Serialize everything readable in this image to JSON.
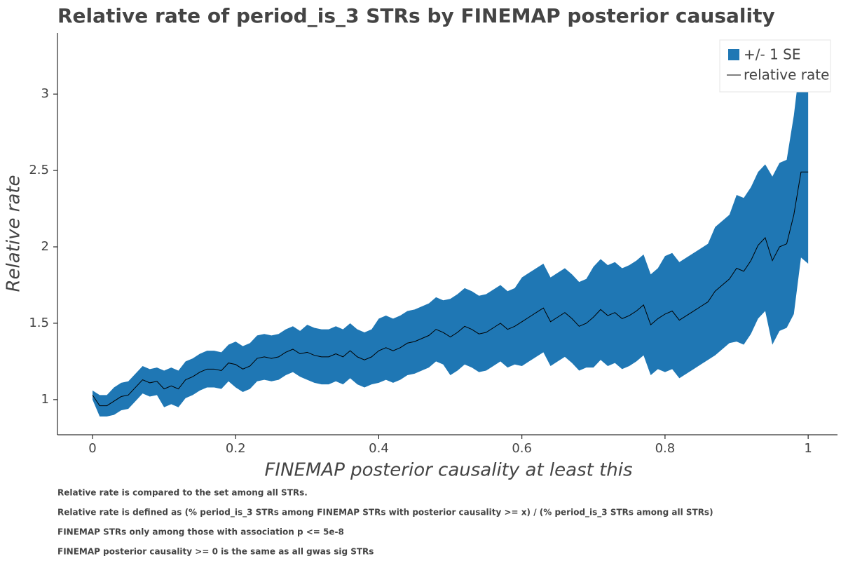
{
  "chart_data": {
    "type": "band-line",
    "title": "Relative rate of period_is_3 STRs by FINEMAP posterior causality",
    "x_label": "FINEMAP posterior causality at least this",
    "y_label": "Relative rate",
    "notes": [
      "Relative rate is compared to the set among all STRs.",
      "Relative rate is defined as (% period_is_3 STRs among FINEMAP STRs with posterior causality >= x) / (% period_is_3 STRs among all STRs)",
      "FINEMAP STRs only among those with association p <= 5e-8",
      "FINEMAP posterior causality >= 0 is the same as all gwas sig STRs"
    ],
    "x": [
      0,
      0.01,
      0.02,
      0.03,
      0.04,
      0.05,
      0.06,
      0.07,
      0.08,
      0.09,
      0.1,
      0.11,
      0.12,
      0.13,
      0.14,
      0.15,
      0.16,
      0.17,
      0.18,
      0.19,
      0.2,
      0.21,
      0.22,
      0.23,
      0.24,
      0.25,
      0.26,
      0.27,
      0.28,
      0.29,
      0.3,
      0.31,
      0.32,
      0.33,
      0.34,
      0.35,
      0.36,
      0.37,
      0.38,
      0.39,
      0.4,
      0.41,
      0.42,
      0.43,
      0.44,
      0.45,
      0.46,
      0.47,
      0.48,
      0.49,
      0.5,
      0.51,
      0.52,
      0.53,
      0.54,
      0.55,
      0.56,
      0.57,
      0.58,
      0.59,
      0.6,
      0.61,
      0.62,
      0.63,
      0.64,
      0.65,
      0.66,
      0.67,
      0.68,
      0.69,
      0.7,
      0.71,
      0.72,
      0.73,
      0.74,
      0.75,
      0.76,
      0.77,
      0.78,
      0.79,
      0.8,
      0.81,
      0.82,
      0.83,
      0.84,
      0.85,
      0.86,
      0.87,
      0.88,
      0.89,
      0.9,
      0.91,
      0.92,
      0.93,
      0.94,
      0.95,
      0.96,
      0.97,
      0.98,
      0.99,
      1
    ],
    "series": [
      {
        "name": "+/- 1 SE",
        "color": "#1f77b4",
        "lower": [
          1.0,
          0.89,
          0.89,
          0.9,
          0.93,
          0.94,
          0.99,
          1.04,
          1.02,
          1.03,
          0.95,
          0.97,
          0.95,
          1.01,
          1.03,
          1.06,
          1.08,
          1.08,
          1.07,
          1.12,
          1.08,
          1.05,
          1.07,
          1.12,
          1.13,
          1.12,
          1.13,
          1.16,
          1.18,
          1.15,
          1.13,
          1.11,
          1.1,
          1.1,
          1.12,
          1.1,
          1.14,
          1.1,
          1.08,
          1.1,
          1.11,
          1.13,
          1.11,
          1.13,
          1.16,
          1.17,
          1.19,
          1.21,
          1.25,
          1.23,
          1.16,
          1.19,
          1.23,
          1.21,
          1.18,
          1.19,
          1.22,
          1.25,
          1.21,
          1.23,
          1.22,
          1.25,
          1.28,
          1.31,
          1.22,
          1.25,
          1.28,
          1.24,
          1.19,
          1.21,
          1.21,
          1.26,
          1.22,
          1.24,
          1.2,
          1.22,
          1.25,
          1.29,
          1.16,
          1.2,
          1.18,
          1.2,
          1.14,
          1.17,
          1.2,
          1.23,
          1.26,
          1.29,
          1.33,
          1.37,
          1.38,
          1.36,
          1.43,
          1.53,
          1.58,
          1.36,
          1.45,
          1.47,
          1.56,
          1.93,
          1.89
        ],
        "upper": [
          1.06,
          1.03,
          1.03,
          1.08,
          1.11,
          1.12,
          1.17,
          1.22,
          1.2,
          1.21,
          1.19,
          1.21,
          1.19,
          1.25,
          1.27,
          1.3,
          1.32,
          1.32,
          1.31,
          1.36,
          1.38,
          1.35,
          1.37,
          1.42,
          1.43,
          1.42,
          1.43,
          1.46,
          1.48,
          1.45,
          1.49,
          1.47,
          1.46,
          1.46,
          1.48,
          1.46,
          1.5,
          1.46,
          1.44,
          1.46,
          1.53,
          1.55,
          1.53,
          1.55,
          1.58,
          1.59,
          1.61,
          1.63,
          1.67,
          1.65,
          1.66,
          1.69,
          1.73,
          1.71,
          1.68,
          1.69,
          1.72,
          1.75,
          1.71,
          1.73,
          1.8,
          1.83,
          1.86,
          1.89,
          1.8,
          1.83,
          1.86,
          1.82,
          1.77,
          1.79,
          1.87,
          1.92,
          1.88,
          1.9,
          1.86,
          1.88,
          1.91,
          1.95,
          1.82,
          1.86,
          1.94,
          1.96,
          1.9,
          1.93,
          1.96,
          1.99,
          2.02,
          2.13,
          2.17,
          2.21,
          2.34,
          2.32,
          2.39,
          2.49,
          2.54,
          2.46,
          2.55,
          2.57,
          2.86,
          3.25,
          3.25
        ]
      },
      {
        "name": "relative rate",
        "color": "#000000",
        "values": [
          1.03,
          0.96,
          0.96,
          0.99,
          1.02,
          1.03,
          1.08,
          1.13,
          1.11,
          1.12,
          1.07,
          1.09,
          1.07,
          1.13,
          1.15,
          1.18,
          1.2,
          1.2,
          1.19,
          1.24,
          1.23,
          1.2,
          1.22,
          1.27,
          1.28,
          1.27,
          1.28,
          1.31,
          1.33,
          1.3,
          1.31,
          1.29,
          1.28,
          1.28,
          1.3,
          1.28,
          1.32,
          1.28,
          1.26,
          1.28,
          1.32,
          1.34,
          1.32,
          1.34,
          1.37,
          1.38,
          1.4,
          1.42,
          1.46,
          1.44,
          1.41,
          1.44,
          1.48,
          1.46,
          1.43,
          1.44,
          1.47,
          1.5,
          1.46,
          1.48,
          1.51,
          1.54,
          1.57,
          1.6,
          1.51,
          1.54,
          1.57,
          1.53,
          1.48,
          1.5,
          1.54,
          1.59,
          1.55,
          1.57,
          1.53,
          1.55,
          1.58,
          1.62,
          1.49,
          1.53,
          1.56,
          1.58,
          1.52,
          1.55,
          1.58,
          1.61,
          1.64,
          1.71,
          1.75,
          1.79,
          1.86,
          1.84,
          1.91,
          2.01,
          2.06,
          1.91,
          2.0,
          2.02,
          2.21,
          2.49,
          2.49
        ]
      }
    ],
    "xlim": [
      -0.049,
      1.041
    ],
    "ylim": [
      0.77,
      3.4
    ],
    "xticks": [
      0,
      0.2,
      0.4,
      0.6,
      0.8,
      1
    ],
    "yticks": [
      1,
      1.5,
      2,
      2.5,
      3
    ],
    "legend": "top-right"
  }
}
